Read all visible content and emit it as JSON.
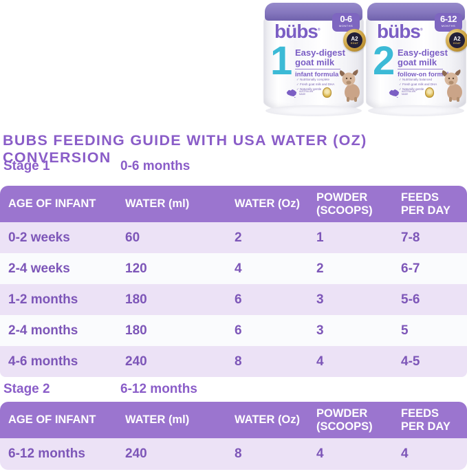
{
  "heading": {
    "title": "BUBS FEEDING GUIDE WITH USA WATER (OZ) CONVERSION"
  },
  "cans": {
    "can1": {
      "brand": "bübs",
      "reg": "®",
      "months": "0-6",
      "months_label": "MONTHS",
      "a2_line1": "A2",
      "a2_line2": "GOAT",
      "stage_digit": "1",
      "tagline1": "Easy-digest",
      "tagline2": "goat milk",
      "formula_type": "infant formula",
      "checklist": [
        "✓ Nutritionally complete",
        "✓ Fresh goat milk and DHA",
        "✓ Naturally gentle"
      ],
      "origin_label": "AUSTRALIAN\nMADE"
    },
    "can2": {
      "brand": "bübs",
      "reg": "®",
      "months": "6-12",
      "months_label": "MONTHS",
      "a2_line1": "A2",
      "a2_line2": "GOAT",
      "stage_digit": "2",
      "tagline1": "Easy-digest",
      "tagline2": "goat milk",
      "formula_type": "follow-on formula",
      "checklist": [
        "✓ Nutritionally balanced",
        "✓ Fresh goat milk and DHA",
        "✓ Naturally gentle"
      ],
      "origin_label": "AUSTRALIAN\nMADE"
    }
  },
  "stage1": {
    "label": "Stage 1",
    "range": "0-6 months",
    "columns": [
      "AGE OF INFANT",
      "WATER (ml)",
      "WATER (Oz)",
      "POWDER\n(SCOOPS)",
      "FEEDS\nPER DAY"
    ],
    "rows": [
      [
        "0-2 weeks",
        "60",
        "2",
        "1",
        "7-8"
      ],
      [
        "2-4 weeks",
        "120",
        "4",
        "2",
        "6-7"
      ],
      [
        "1-2 months",
        "180",
        "6",
        "3",
        "5-6"
      ],
      [
        "2-4 months",
        "180",
        "6",
        "3",
        "5"
      ],
      [
        "4-6 months",
        "240",
        "8",
        "4",
        "4-5"
      ]
    ]
  },
  "stage2": {
    "label": "Stage 2",
    "range": "6-12 months",
    "columns": [
      "AGE OF INFANT",
      "WATER (ml)",
      "WATER (Oz)",
      "POWDER\n(SCOOPS)",
      "FEEDS\nPER DAY"
    ],
    "rows": [
      [
        "6-12 months",
        "240",
        "8",
        "4",
        "4"
      ]
    ]
  },
  "colors": {
    "header_purple": "#9b75cf",
    "row_lavender": "#ece2f6",
    "row_white": "#fafbfd",
    "text_purple": "#7d56b8",
    "heading_purple": "#8a5dc8",
    "teal": "#3cbad6",
    "gold": "#c79b3b",
    "lid_purple": "#8577be"
  }
}
